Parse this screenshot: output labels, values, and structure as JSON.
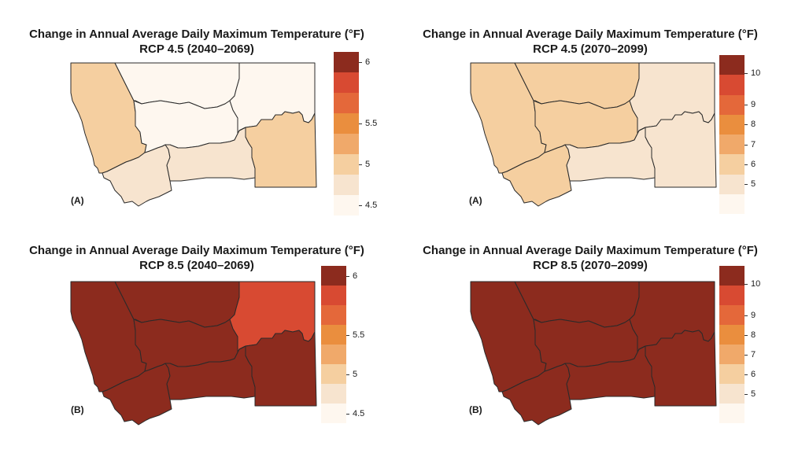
{
  "panels": [
    {
      "id": "p1",
      "title_line1": "Change in Annual Average Daily Maximum Temperature (°F)",
      "title_line2": "RCP 4.5 (2040–2069)",
      "tag": "(A)",
      "legend": {
        "colors": [
          "#fef7ef",
          "#f7e4cf",
          "#f5cfa0",
          "#f0a96a",
          "#ea8e3e",
          "#e4683a",
          "#d84a32",
          "#8c2b1e"
        ],
        "ticks": [
          "4.5",
          "5",
          "5.5",
          "6"
        ]
      },
      "region_colors": {
        "northwest": "#f5cfa0",
        "southwest": "#f7e4cf",
        "northcentral": "#fef7ef",
        "central": "#fef7ef",
        "northeast": "#fef7ef",
        "southcentral": "#f7e4cf",
        "southeast": "#f5cfa0"
      }
    },
    {
      "id": "p2",
      "title_line1": "Change in Annual Average Daily Maximum Temperature (°F)",
      "title_line2": "RCP 4.5 (2070–2099)",
      "tag": "(A)",
      "legend": {
        "colors": [
          "#fef7ef",
          "#f7e4cf",
          "#f5cfa0",
          "#f0a96a",
          "#ea8e3e",
          "#e4683a",
          "#d84a32",
          "#8c2b1e"
        ],
        "ticks": [
          "5",
          "6",
          "7",
          "8",
          "9",
          "10"
        ]
      },
      "region_colors": {
        "northwest": "#f5cfa0",
        "southwest": "#f5cfa0",
        "northcentral": "#f5cfa0",
        "central": "#f5cfa0",
        "northeast": "#f7e4cf",
        "southcentral": "#f7e4cf",
        "southeast": "#f7e4cf"
      }
    },
    {
      "id": "p3",
      "title_line1": "Change in Annual Average Daily Maximum Temperature (°F)",
      "title_line2": "RCP 8.5 (2040–2069)",
      "tag": "(B)",
      "legend": {
        "colors": [
          "#fef7ef",
          "#f7e4cf",
          "#f5cfa0",
          "#f0a96a",
          "#ea8e3e",
          "#e4683a",
          "#d84a32",
          "#8c2b1e"
        ],
        "ticks": [
          "4.5",
          "5",
          "5.5",
          "6"
        ]
      },
      "region_colors": {
        "northwest": "#8c2b1e",
        "southwest": "#8c2b1e",
        "northcentral": "#8c2b1e",
        "central": "#8c2b1e",
        "northeast": "#d84a32",
        "southcentral": "#8c2b1e",
        "southeast": "#8c2b1e"
      }
    },
    {
      "id": "p4",
      "title_line1": "Change in Annual Average Daily Maximum Temperature (°F)",
      "title_line2": "RCP 8.5 (2070–2099)",
      "tag": "(B)",
      "legend": {
        "colors": [
          "#fef7ef",
          "#f7e4cf",
          "#f5cfa0",
          "#f0a96a",
          "#ea8e3e",
          "#e4683a",
          "#d84a32",
          "#8c2b1e"
        ],
        "ticks": [
          "5",
          "6",
          "7",
          "8",
          "9",
          "10"
        ]
      },
      "region_colors": {
        "northwest": "#8c2b1e",
        "southwest": "#8c2b1e",
        "northcentral": "#8c2b1e",
        "central": "#8c2b1e",
        "northeast": "#8c2b1e",
        "southcentral": "#8c2b1e",
        "southeast": "#8c2b1e"
      }
    }
  ]
}
